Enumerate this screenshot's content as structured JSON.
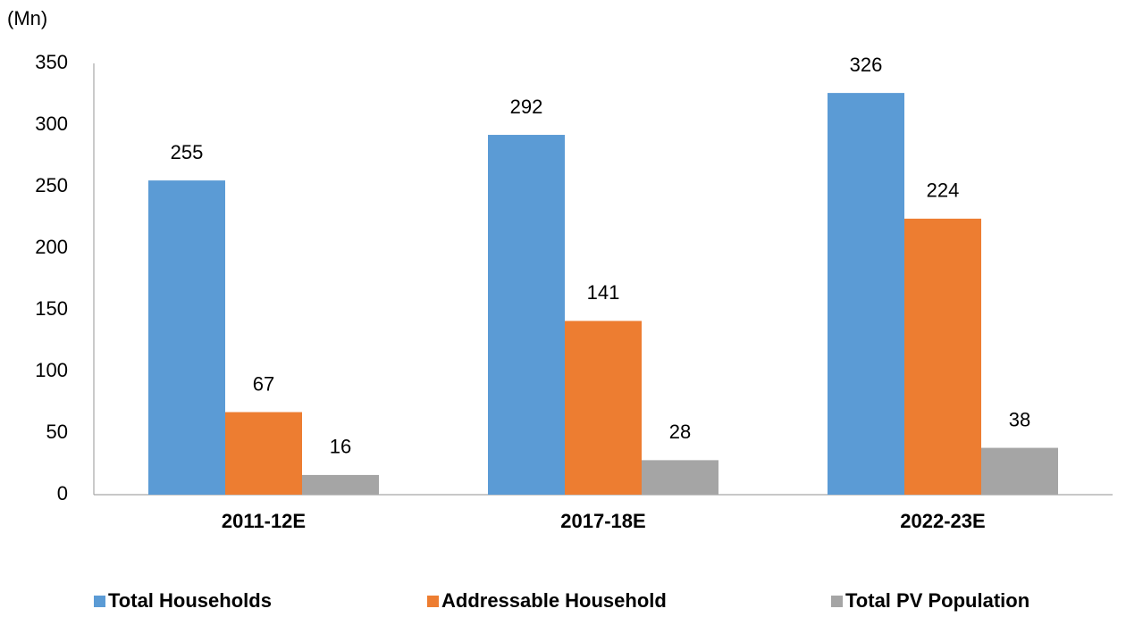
{
  "chart_data": {
    "type": "bar",
    "y_label": "(Mn)",
    "categories": [
      "2011-12E",
      "2017-18E",
      "2022-23E"
    ],
    "series": [
      {
        "name": "Total Households",
        "color": "#5b9bd5",
        "values": [
          255,
          292,
          326
        ]
      },
      {
        "name": "Addressable Household",
        "color": "#ed7d31",
        "values": [
          67,
          141,
          224
        ]
      },
      {
        "name": "Total PV Population",
        "color": "#a5a5a5",
        "values": [
          16,
          28,
          38
        ]
      }
    ],
    "ylim": [
      0,
      350
    ],
    "yticks": [
      0,
      50,
      100,
      150,
      200,
      250,
      300,
      350
    ],
    "grid": false,
    "legend": "bottom"
  }
}
